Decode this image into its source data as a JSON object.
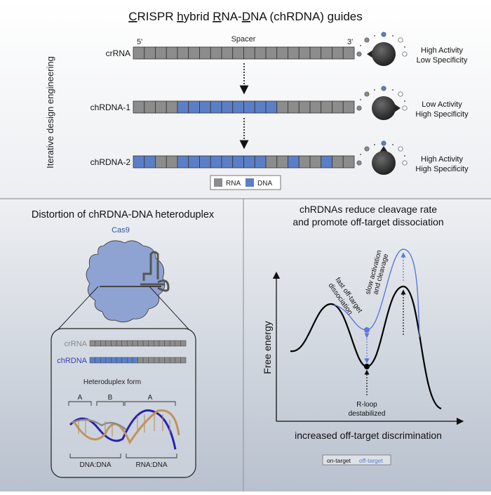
{
  "top": {
    "title_parts": [
      {
        "t": "C",
        "u": true
      },
      {
        "t": "RISPR ",
        "u": false
      },
      {
        "t": "h",
        "u": true
      },
      {
        "t": "ybrid ",
        "u": false
      },
      {
        "t": "R",
        "u": true
      },
      {
        "t": "NA-",
        "u": false
      },
      {
        "t": "D",
        "u": true
      },
      {
        "t": "NA (chRDNA) guides",
        "u": false
      }
    ],
    "side_label": "Iterative design engineering",
    "spacer_label": "Spacer",
    "five_prime": "5'",
    "three_prime": "3'",
    "rows": [
      {
        "name": "crRNA",
        "pattern": "RRRRRRRRRRRRRRRRRRRR",
        "line1": "High Activity",
        "line2": "Low Specificity",
        "knob": "left"
      },
      {
        "name": "chRDNA-1",
        "pattern": "RRRRDDDDDDDDDRRRRRRR",
        "line1": "Low Activity",
        "line2": "High Specificity",
        "knob": "right"
      },
      {
        "name": "chRDNA-2",
        "pattern": "DDRRDDDDDDDDRRDRRDRR",
        "line1": "High Activity",
        "line2": "High Specificity",
        "knob": "up"
      }
    ],
    "legend": {
      "rna": "RNA",
      "dna": "DNA"
    }
  },
  "colors": {
    "rna": "#8c8c8c",
    "dna": "#5b7fc7",
    "offtarget": "#5a78d8",
    "cas9": "#8fa3d3",
    "cas9_label": "#3c4f9c"
  },
  "left_panel": {
    "title": "Distortion of chRDNA-DNA heteroduplex",
    "cas9_label": "Cas9",
    "crrna_label": "crRNA",
    "chrdna_label": "chRDNA",
    "small_crrna": "RRRRRRRRRRRRRRRRRR",
    "small_chrdna": "DDDDDDDDDRRRRRRRRR",
    "heteroduplex_title": "Heteroduplex form",
    "brackets_top": [
      "A",
      "B",
      "A"
    ],
    "brackets_bottom": [
      "DNA:DNA",
      "RNA:DNA"
    ]
  },
  "right_panel": {
    "title_line1": "chRDNAs reduce cleavage rate",
    "title_line2": "and promote off-target dissociation",
    "ylabel": "Free energy",
    "xlabel": "increased off-target discrimination",
    "annot_fast_1": "fast off-target",
    "annot_fast_2": "dissociation",
    "annot_slow_1": "slow activation",
    "annot_slow_2": "and cleavage",
    "annot_rloop_1": "R-loop",
    "annot_rloop_2": "destabilized",
    "legend_on": "on-target",
    "legend_off": "off-target"
  }
}
